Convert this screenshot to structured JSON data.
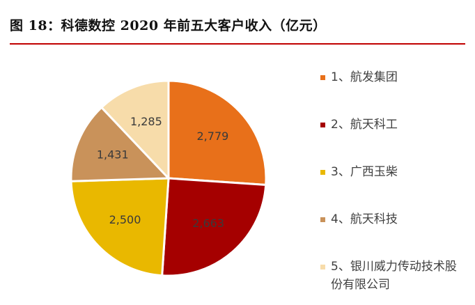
{
  "title": "图 18：科德数控 2020 年前五大客户收入（亿元）",
  "chart_data": {
    "type": "pie",
    "categories": [
      "1、航发集团",
      "2、航天科工",
      "3、广西玉柴",
      "4、航天科技",
      "5、银川威力传动技术股份有限公司"
    ],
    "values": [
      2779,
      2663,
      2500,
      1431,
      1285
    ],
    "value_labels": [
      "2,779",
      "2,663",
      "2,500",
      "1,431",
      "1,285"
    ],
    "colors": [
      "#e8701a",
      "#a50000",
      "#e9b800",
      "#c9925a",
      "#f7dcaa"
    ],
    "label_colors": [
      "#3a3a3a",
      "#3a3a3a",
      "#3a3a3a",
      "#3a3a3a",
      "#3a3a3a"
    ],
    "legend_position": "right"
  }
}
